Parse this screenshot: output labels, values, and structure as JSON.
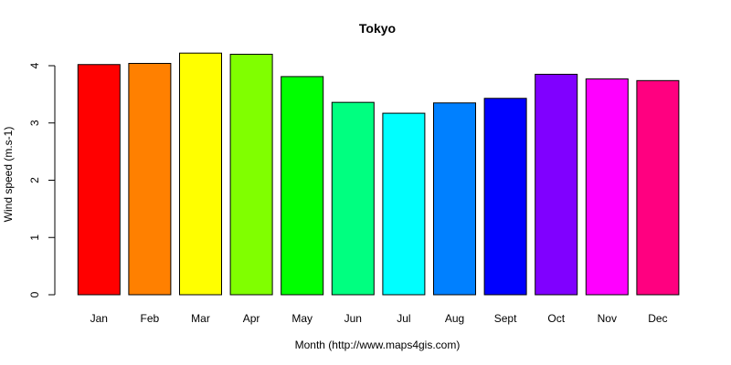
{
  "chart_data": {
    "type": "bar",
    "title": "Tokyo",
    "xlabel": "Month (http://www.maps4gis.com)",
    "ylabel": "Wind speed (m.s-1)",
    "ylim": [
      0,
      4.2
    ],
    "yticks": [
      0,
      1,
      2,
      3,
      4
    ],
    "grid": false,
    "categories": [
      "Jan",
      "Feb",
      "Mar",
      "Apr",
      "May",
      "Jun",
      "Jul",
      "Aug",
      "Sept",
      "Oct",
      "Nov",
      "Dec"
    ],
    "values": [
      4.02,
      4.04,
      4.22,
      4.2,
      3.81,
      3.36,
      3.17,
      3.35,
      3.43,
      3.85,
      3.77,
      3.74
    ],
    "colors": [
      "#ff0000",
      "#ff8000",
      "#ffff00",
      "#80ff00",
      "#00ff00",
      "#00ff80",
      "#00ffff",
      "#0080ff",
      "#0000ff",
      "#8000ff",
      "#ff00ff",
      "#ff0080"
    ]
  }
}
